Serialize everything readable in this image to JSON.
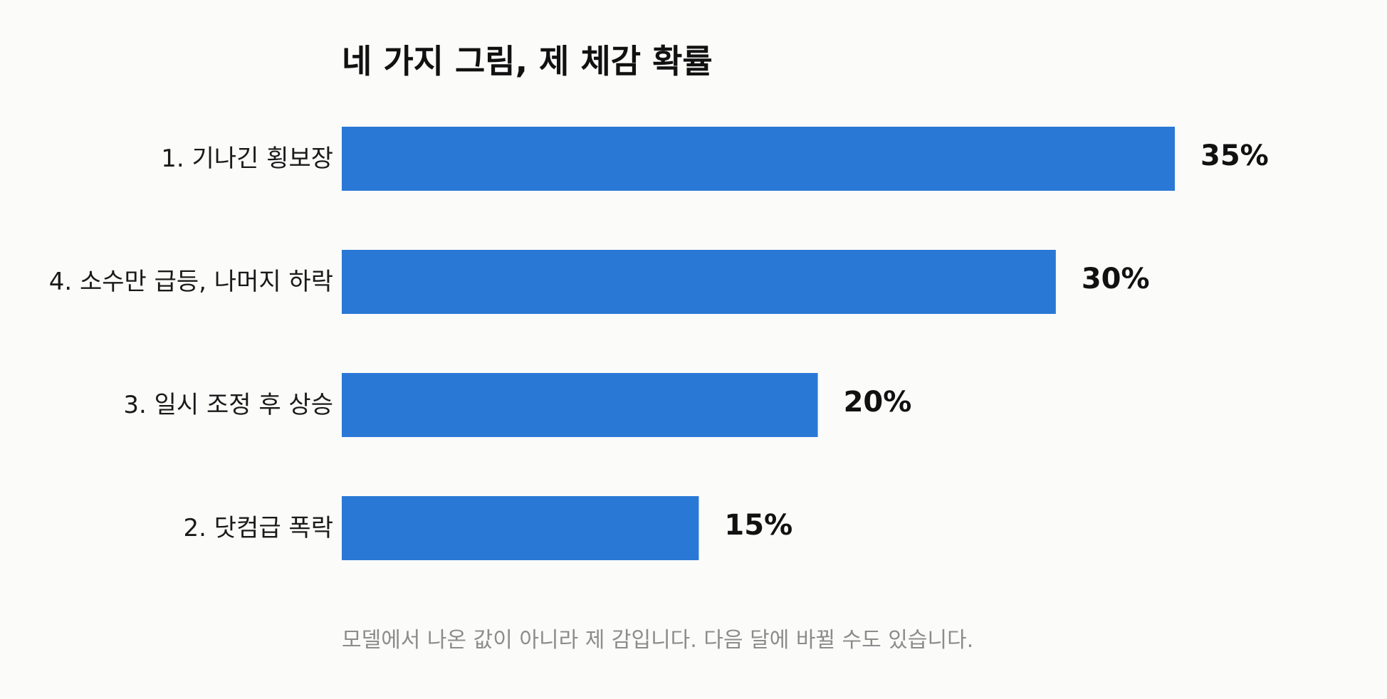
{
  "chart_data": {
    "type": "bar",
    "orientation": "horizontal",
    "title": "네 가지 그림, 제 체감 확률",
    "categories": [
      "1. 기나긴 횡보장",
      "4. 소수만 급등, 나머지 하락",
      "3. 일시 조정 후 상승",
      "2. 닷컴급 폭락"
    ],
    "values": [
      35,
      30,
      20,
      15
    ],
    "value_labels": [
      "35%",
      "30%",
      "20%",
      "15%"
    ],
    "unit": "%",
    "xlim": [
      0,
      35
    ],
    "grid": false,
    "legend": "none",
    "bar_color": "#2a78d6",
    "footnote": "모델에서 나온 값이 아니라 제 감입니다. 다음 달에 바뀔 수도 있습니다."
  }
}
